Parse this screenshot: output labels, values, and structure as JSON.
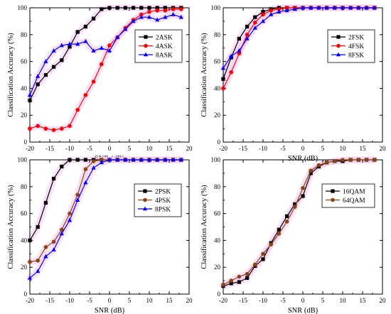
{
  "chart_data": [
    {
      "type": "line",
      "id": "ask",
      "xlabel": "SNR (dB)",
      "ylabel": "Classification Accuracy (%)",
      "xlim": [
        -20,
        20
      ],
      "ylim": [
        0,
        100
      ],
      "xticks": [
        -20,
        -15,
        -10,
        -5,
        0,
        5,
        10,
        15,
        20
      ],
      "yticks": [
        0,
        20,
        40,
        60,
        80,
        100
      ],
      "legend_position": "top-right",
      "series": [
        {
          "name": "2ASK",
          "color": "#000000",
          "marker": "square",
          "x": [
            -20,
            -18,
            -16,
            -14,
            -12,
            -10,
            -8,
            -6,
            -4,
            -2,
            0,
            2,
            4,
            6,
            8,
            10,
            12,
            14,
            16,
            18
          ],
          "values": [
            31,
            43,
            50,
            56,
            61,
            71,
            82,
            86,
            92,
            99,
            100,
            100,
            100,
            100,
            100,
            100,
            100,
            100,
            100,
            100
          ]
        },
        {
          "name": "4ASK",
          "color": "#ff0000",
          "marker": "circle",
          "x": [
            -20,
            -18,
            -16,
            -14,
            -12,
            -10,
            -8,
            -6,
            -4,
            -2,
            0,
            2,
            4,
            6,
            8,
            10,
            12,
            14,
            16,
            18
          ],
          "values": [
            10,
            12,
            10,
            9,
            10,
            12,
            24,
            35,
            45,
            58,
            72,
            78,
            85,
            91,
            95,
            97,
            98,
            98,
            99,
            99
          ]
        },
        {
          "name": "8ASK",
          "color": "#0000ff",
          "marker": "triangle",
          "x": [
            -20,
            -18,
            -16,
            -14,
            -12,
            -10,
            -8,
            -6,
            -4,
            -2,
            0,
            2,
            4,
            6,
            8,
            10,
            12,
            14,
            16,
            18
          ],
          "values": [
            35,
            49,
            60,
            68,
            72,
            73,
            73,
            75,
            68,
            70,
            68,
            78,
            84,
            90,
            93,
            93,
            91,
            93,
            95,
            93
          ]
        }
      ]
    },
    {
      "type": "line",
      "id": "fsk",
      "xlabel": "SNR (dB)",
      "ylabel": "Classification Accuracy (%)",
      "xlim": [
        -20,
        20
      ],
      "ylim": [
        0,
        100
      ],
      "xticks": [
        -20,
        -15,
        -10,
        -5,
        0,
        5,
        10,
        15,
        20
      ],
      "yticks": [
        0,
        20,
        40,
        60,
        80,
        100
      ],
      "legend_position": "middle-right",
      "series": [
        {
          "name": "2FSK",
          "color": "#000000",
          "marker": "square",
          "x": [
            -20,
            -18,
            -16,
            -14,
            -12,
            -10,
            -8,
            -6,
            -4,
            -2,
            0,
            2,
            4,
            6,
            8,
            10,
            12,
            14,
            16,
            18
          ],
          "values": [
            47,
            63,
            77,
            86,
            93,
            97,
            99,
            100,
            100,
            100,
            100,
            100,
            100,
            100,
            100,
            100,
            100,
            100,
            100,
            100
          ]
        },
        {
          "name": "4FSK",
          "color": "#ff0000",
          "marker": "circle",
          "x": [
            -20,
            -18,
            -16,
            -14,
            -12,
            -10,
            -8,
            -6,
            -4,
            -2,
            0,
            2,
            4,
            6,
            8,
            10,
            12,
            14,
            16,
            18
          ],
          "values": [
            40,
            52,
            66,
            80,
            89,
            95,
            98,
            99,
            100,
            100,
            100,
            100,
            100,
            100,
            100,
            100,
            100,
            100,
            100,
            100
          ]
        },
        {
          "name": "8FSK",
          "color": "#0000ff",
          "marker": "triangle",
          "x": [
            -20,
            -18,
            -16,
            -14,
            -12,
            -10,
            -8,
            -6,
            -4,
            -2,
            0,
            2,
            4,
            6,
            8,
            10,
            12,
            14,
            16,
            18
          ],
          "values": [
            55,
            64,
            68,
            77,
            85,
            90,
            95,
            97,
            98,
            99,
            100,
            100,
            100,
            100,
            100,
            100,
            100,
            100,
            100,
            100
          ]
        }
      ]
    },
    {
      "type": "line",
      "id": "psk",
      "xlabel": "SNR (dB)",
      "ylabel": "Classification Accuracy (%)",
      "xlim": [
        -20,
        20
      ],
      "ylim": [
        0,
        100
      ],
      "xticks": [
        -20,
        -15,
        -10,
        -5,
        0,
        5,
        10,
        15,
        20
      ],
      "yticks": [
        0,
        20,
        40,
        60,
        80,
        100
      ],
      "legend_position": "middle-right",
      "series": [
        {
          "name": "2PSK",
          "color": "#000000",
          "marker": "square",
          "x": [
            -20,
            -18,
            -16,
            -14,
            -12,
            -10,
            -8,
            -6,
            -4,
            -2,
            0,
            2,
            4,
            6,
            8,
            10,
            12,
            14,
            16,
            18
          ],
          "values": [
            40,
            50,
            68,
            86,
            95,
            100,
            100,
            100,
            100,
            100,
            100,
            100,
            100,
            100,
            100,
            100,
            100,
            100,
            100,
            100
          ]
        },
        {
          "name": "4PSK",
          "color": "#8b4513",
          "marker": "circle",
          "x": [
            -20,
            -18,
            -16,
            -14,
            -12,
            -10,
            -8,
            -6,
            -4,
            -2,
            0,
            2,
            4,
            6,
            8,
            10,
            12,
            14,
            16,
            18
          ],
          "values": [
            24,
            25,
            35,
            39,
            48,
            60,
            74,
            93,
            99,
            100,
            100,
            100,
            100,
            100,
            100,
            100,
            100,
            100,
            100,
            100
          ]
        },
        {
          "name": "8PSK",
          "color": "#0000ff",
          "marker": "triangle",
          "x": [
            -20,
            -18,
            -16,
            -14,
            -12,
            -10,
            -8,
            -6,
            -4,
            -2,
            0,
            2,
            4,
            6,
            8,
            10,
            12,
            14,
            16,
            18
          ],
          "values": [
            12,
            17,
            28,
            33,
            45,
            55,
            70,
            83,
            94,
            98,
            100,
            100,
            100,
            100,
            100,
            100,
            100,
            100,
            100,
            100
          ]
        }
      ]
    },
    {
      "type": "line",
      "id": "qam",
      "xlabel": "SNR (dB)",
      "ylabel": "Classification Accuracy (%)",
      "xlim": [
        -20,
        20
      ],
      "ylim": [
        0,
        100
      ],
      "xticks": [
        -20,
        -15,
        -10,
        -5,
        0,
        5,
        10,
        15,
        20
      ],
      "yticks": [
        0,
        20,
        40,
        60,
        80,
        100
      ],
      "legend_position": "middle-right",
      "series": [
        {
          "name": "16QAM",
          "color": "#000000",
          "marker": "square",
          "x": [
            -20,
            -18,
            -16,
            -14,
            -12,
            -10,
            -8,
            -6,
            -4,
            -2,
            0,
            2,
            4,
            6,
            8,
            10,
            12,
            14,
            16,
            18
          ],
          "values": [
            6,
            8,
            9,
            12,
            21,
            26,
            38,
            48,
            58,
            67,
            73,
            90,
            95,
            98,
            99,
            99,
            100,
            100,
            100,
            100
          ]
        },
        {
          "name": "64QAM",
          "color": "#8b4513",
          "marker": "circle",
          "x": [
            -20,
            -18,
            -16,
            -14,
            -12,
            -10,
            -8,
            -6,
            -4,
            -2,
            0,
            2,
            4,
            6,
            8,
            10,
            12,
            14,
            16,
            18
          ],
          "values": [
            7,
            10,
            13,
            15,
            22,
            30,
            37,
            45,
            54,
            65,
            79,
            92,
            96,
            98,
            99,
            100,
            100,
            100,
            100,
            100
          ]
        }
      ]
    }
  ]
}
